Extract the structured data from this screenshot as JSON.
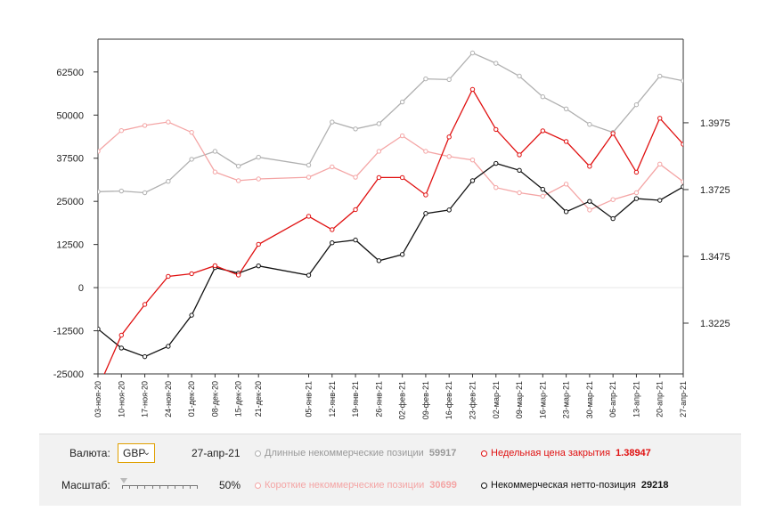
{
  "chart_data": {
    "type": "line",
    "categories": [
      "03-ноя-20",
      "10-ноя-20",
      "17-ноя-20",
      "24-ноя-20",
      "01-дек-20",
      "08-дек-20",
      "15-дек-20",
      "21-дек-20",
      "05-янв-21",
      "12-янв-21",
      "19-янв-21",
      "26-янв-21",
      "02-фев-21",
      "09-фев-21",
      "16-фев-21",
      "23-фев-21",
      "02-мар-21",
      "09-мар-21",
      "16-мар-21",
      "23-мар-21",
      "30-мар-21",
      "06-апр-21",
      "13-апр-21",
      "20-апр-21",
      "27-апр-21"
    ],
    "x_days": [
      0,
      7,
      14,
      21,
      28,
      35,
      42,
      48,
      63,
      70,
      77,
      84,
      91,
      98,
      105,
      112,
      119,
      126,
      133,
      140,
      147,
      154,
      161,
      168,
      175
    ],
    "left_axis": {
      "ylim": [
        -25000,
        72000
      ],
      "ticks": [
        62500,
        50000,
        37500,
        25000,
        12500,
        0,
        -12500,
        -25000
      ],
      "tick_labels": [
        "62500",
        "50000",
        "37500",
        "25000",
        "12500",
        "0",
        "-12500",
        "-25000"
      ]
    },
    "right_axis": {
      "ylim": [
        1.3035,
        1.4288
      ],
      "ticks": [
        1.3975,
        1.3725,
        1.3475,
        1.3225
      ],
      "tick_labels": [
        "1.3975",
        "1.3725",
        "1.3475",
        "1.3225"
      ]
    },
    "grid": "zero-line-only",
    "series": [
      {
        "name": "Длинные некоммерческие позиции",
        "axis": "left",
        "color": "#b0b0b0",
        "values": [
          27800,
          28000,
          27500,
          30800,
          37200,
          39500,
          35200,
          37800,
          35500,
          48000,
          46000,
          47500,
          53800,
          60500,
          60300,
          68000,
          65000,
          61300,
          55300,
          51800,
          47300,
          45000,
          53000,
          61300,
          59917
        ]
      },
      {
        "name": "Короткие некоммерческие позиции",
        "axis": "left",
        "color": "#f4a5a5",
        "values": [
          39500,
          45500,
          47000,
          48000,
          45000,
          33500,
          31000,
          31500,
          32000,
          35000,
          32000,
          39500,
          44000,
          39500,
          38000,
          37000,
          29000,
          27500,
          26500,
          30000,
          22500,
          25500,
          27500,
          35800,
          30699
        ]
      },
      {
        "name": "Некоммерческая нетто-позиция",
        "axis": "left",
        "color": "#111111",
        "values": [
          -12000,
          -17500,
          -20000,
          -17000,
          -8000,
          5800,
          4200,
          6300,
          3600,
          13000,
          13800,
          7800,
          9600,
          21500,
          22500,
          31000,
          36000,
          34000,
          28500,
          22000,
          25000,
          20000,
          25800,
          25300,
          29218
        ]
      },
      {
        "name": "Недельная цена закрытия",
        "axis": "right",
        "color": "#e01010",
        "values": [
          1.298,
          1.318,
          1.3295,
          1.34,
          1.341,
          1.344,
          1.3405,
          1.352,
          1.3625,
          1.3575,
          1.365,
          1.377,
          1.377,
          1.3705,
          1.3922,
          1.41,
          1.395,
          1.3855,
          1.3945,
          1.3905,
          1.3812,
          1.3935,
          1.379,
          1.3992,
          1.38947
        ]
      }
    ]
  },
  "controls": {
    "currency_label": "Валюта:",
    "currency_value": "GBP",
    "date": "27-апр-21",
    "scale_label": "Масштаб:",
    "scale_value": "50%"
  },
  "legend": {
    "long_label": "Длинные некоммерческие позиции",
    "long_value": "59917",
    "long_color": "#b0b0b0",
    "short_label": "Короткие некоммерческие позиции",
    "short_value": "30699",
    "short_color": "#f4a5a5",
    "price_label": "Недельная цена закрытия",
    "price_value": "1.38947",
    "price_color": "#e01010",
    "net_label": "Некоммерческая нетто-позиция",
    "net_value": "29218",
    "net_color": "#111111"
  }
}
